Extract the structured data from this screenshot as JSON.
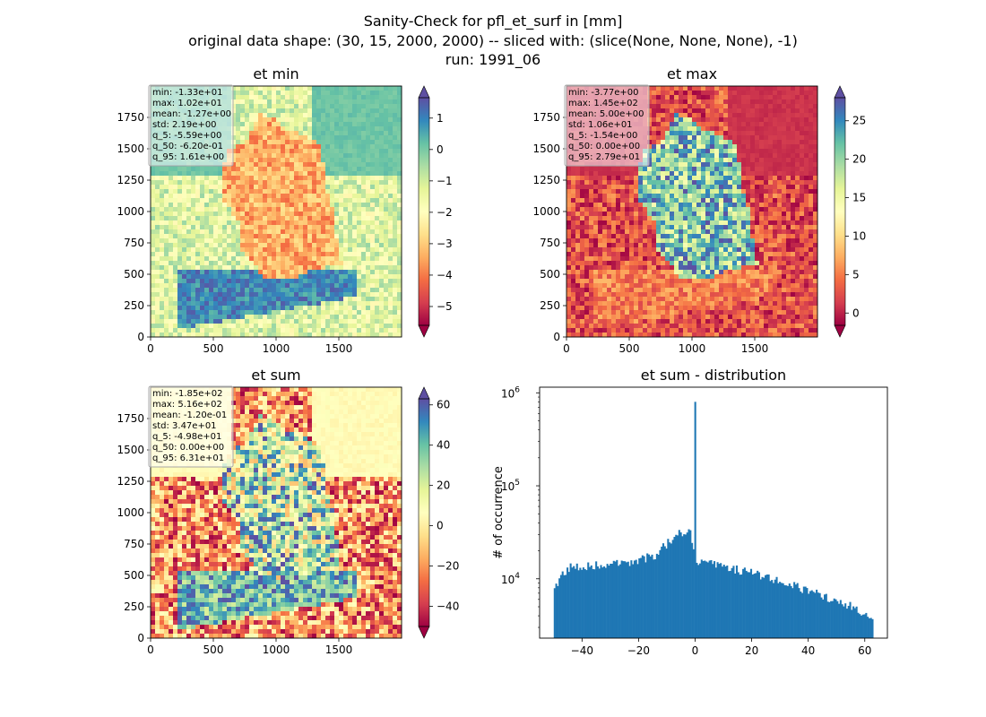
{
  "figure": {
    "title_lines": [
      "Sanity-Check for pfl_et_surf in [mm]",
      "original data shape: (30, 15, 2000, 2000) -- sliced with: (slice(None, None, None), -1)",
      "run: 1991_06"
    ]
  },
  "colors": {
    "spectral": [
      "#9e0142",
      "#d53e4f",
      "#f46d43",
      "#fdae61",
      "#fee08b",
      "#ffffbf",
      "#e6f598",
      "#abdda4",
      "#66c2a5",
      "#3288bd",
      "#5e4fa2"
    ],
    "histogram_bar": "#1f77b4"
  },
  "chart_data": [
    {
      "type": "heatmap",
      "title": "et min",
      "xlim": [
        0,
        2000
      ],
      "ylim": [
        0,
        2000
      ],
      "x_ticks": [
        0,
        500,
        1000,
        1500
      ],
      "y_ticks": [
        0,
        250,
        500,
        750,
        1000,
        1250,
        1500,
        1750
      ],
      "colorbar": {
        "vmin": -5.6,
        "vmax": 1.65,
        "ticks": [
          "1",
          "0",
          "−1",
          "−2",
          "−3",
          "−4",
          "−5"
        ],
        "tick_values": [
          1,
          0,
          -1,
          -2,
          -3,
          -4,
          -5
        ]
      },
      "stats": [
        "min: -1.33e+01",
        "max: 1.02e+01",
        "mean: -1.27e+00",
        "std: 2.19e+00",
        "q_5: -5.59e+00",
        "q_50: -6.20e-01",
        "q_95: 1.61e+00"
      ]
    },
    {
      "type": "heatmap",
      "title": "et max",
      "xlim": [
        0,
        2000
      ],
      "ylim": [
        0,
        2000
      ],
      "x_ticks": [
        0,
        500,
        1000,
        1500
      ],
      "y_ticks": [
        0,
        250,
        500,
        750,
        1000,
        1250,
        1500,
        1750
      ],
      "colorbar": {
        "vmin": -1.6,
        "vmax": 28,
        "ticks": [
          "25",
          "20",
          "15",
          "10",
          "5",
          "0"
        ],
        "tick_values": [
          25,
          20,
          15,
          10,
          5,
          0
        ]
      },
      "stats": [
        "min: -3.77e+00",
        "max: 1.45e+02",
        "mean: 5.00e+00",
        "std: 1.06e+01",
        "q_5: -1.54e+00",
        "q_50: 0.00e+00",
        "q_95: 2.79e+01"
      ]
    },
    {
      "type": "heatmap",
      "title": "et sum",
      "xlim": [
        0,
        2000
      ],
      "ylim": [
        0,
        2000
      ],
      "x_ticks": [
        0,
        500,
        1000,
        1500
      ],
      "y_ticks": [
        0,
        250,
        500,
        750,
        1000,
        1250,
        1500,
        1750
      ],
      "colorbar": {
        "vmin": -50,
        "vmax": 63,
        "ticks": [
          "60",
          "40",
          "20",
          "0",
          "−20",
          "−40"
        ],
        "tick_values": [
          60,
          40,
          20,
          0,
          -20,
          -40
        ]
      },
      "stats": [
        "min: -1.85e+02",
        "max: 5.16e+02",
        "mean: -1.20e-01",
        "std: 3.47e+01",
        "q_5: -4.98e+01",
        "q_50: 0.00e+00",
        "q_95: 6.31e+01"
      ]
    },
    {
      "type": "bar",
      "title": "et sum - distribution",
      "ylabel": "# of occurrence",
      "yscale": "log",
      "xlim": [
        -55,
        68
      ],
      "ylim": [
        2300,
        1150000
      ],
      "x_ticks": [
        -40,
        -20,
        0,
        20,
        40,
        60
      ],
      "x_tick_labels": [
        "−40",
        "−20",
        "0",
        "20",
        "40",
        "60"
      ],
      "y_ticks": [
        10000,
        100000,
        1000000
      ],
      "y_tick_labels": [
        "10^4",
        "10^5",
        "10^6"
      ],
      "range": [
        -50,
        63
      ],
      "bins": 200,
      "profile": [
        {
          "x": -50,
          "y": 7000
        },
        {
          "x": -47,
          "y": 11500
        },
        {
          "x": -44,
          "y": 13500
        },
        {
          "x": -35,
          "y": 14000
        },
        {
          "x": -28,
          "y": 14500
        },
        {
          "x": -20,
          "y": 16000
        },
        {
          "x": -14,
          "y": 18000
        },
        {
          "x": -10,
          "y": 24000
        },
        {
          "x": -6,
          "y": 30000
        },
        {
          "x": -2,
          "y": 34000
        },
        {
          "x": 0,
          "y": 15000
        },
        {
          "x": 4,
          "y": 15000
        },
        {
          "x": 10,
          "y": 13500
        },
        {
          "x": 20,
          "y": 11500
        },
        {
          "x": 30,
          "y": 9500
        },
        {
          "x": 40,
          "y": 7500
        },
        {
          "x": 50,
          "y": 5800
        },
        {
          "x": 57,
          "y": 5000
        },
        {
          "x": 63,
          "y": 3500
        }
      ],
      "spike": {
        "x": 0,
        "y": 800000
      }
    }
  ]
}
